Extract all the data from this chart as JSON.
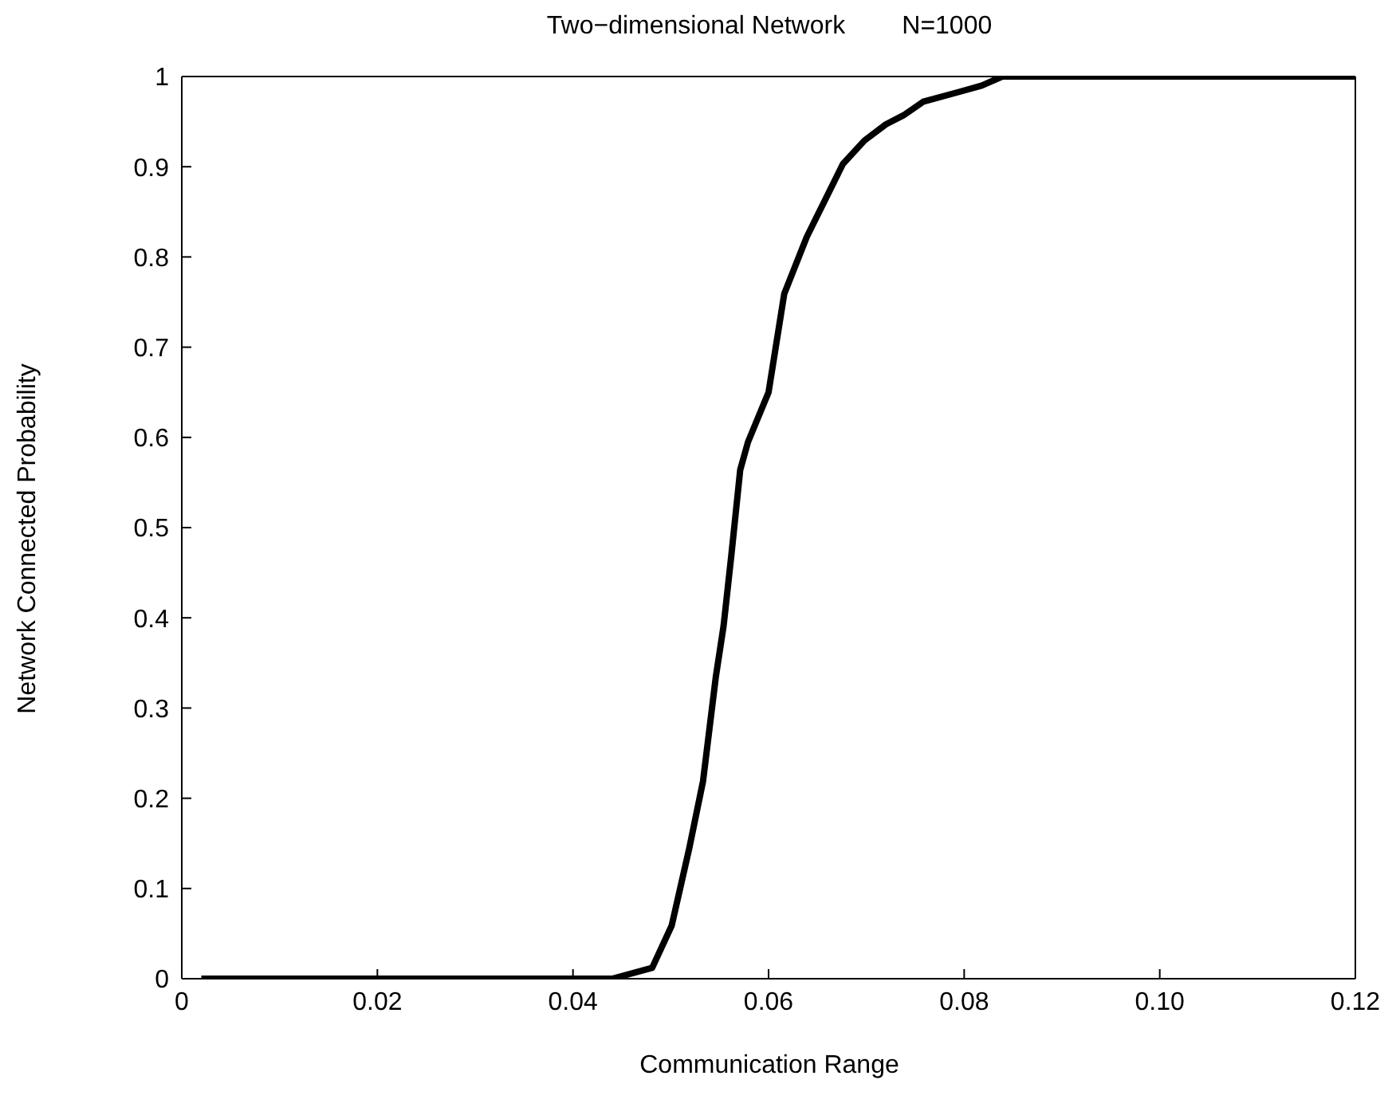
{
  "chart_data": {
    "type": "line",
    "title": "Two−dimensional Network        N=1000",
    "xlabel": "Communication Range",
    "ylabel": "Network Connected Probability",
    "series": [
      {
        "color": "#000000",
        "x": [
          0.002,
          0.044,
          0.0481,
          0.0501,
          0.0519,
          0.0533,
          0.0546,
          0.0554,
          0.0562,
          0.0571,
          0.0579,
          0.06,
          0.0616,
          0.0639,
          0.0676,
          0.0698,
          0.072,
          0.0738,
          0.0758,
          0.0795,
          0.0818,
          0.0839,
          0.12
        ],
        "values": [
          0,
          0,
          0.012,
          0.059,
          0.145,
          0.219,
          0.334,
          0.391,
          0.47,
          0.564,
          0.595,
          0.65,
          0.759,
          0.822,
          0.903,
          0.929,
          0.947,
          0.957,
          0.972,
          0.983,
          0.99,
          1,
          1
        ]
      }
    ],
    "xlim": [
      0,
      0.12
    ],
    "xticks": [
      0,
      0.02,
      0.04,
      0.06,
      0.08,
      {
        "value": 0.1,
        "label": "0.10"
      },
      0.12
    ],
    "ylim": [
      0,
      1
    ],
    "yticks": [
      0,
      0.1,
      0.2,
      0.3,
      0.4,
      0.5,
      0.6,
      0.7,
      0.8,
      0.9,
      1
    ],
    "marker": "none",
    "line_style": "solid"
  }
}
